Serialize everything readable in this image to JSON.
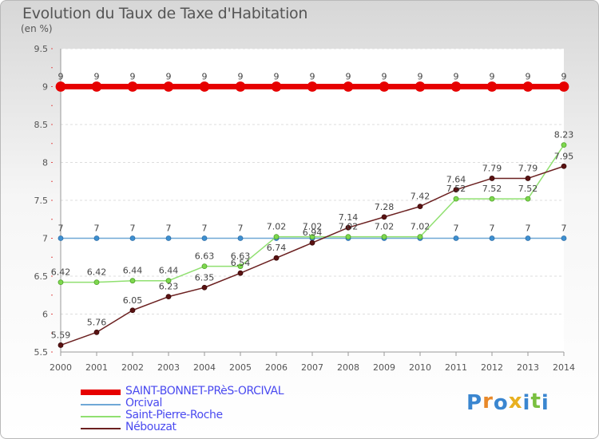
{
  "title": "Evolution du Taux de Taxe d'Habitation",
  "subtitle": "(en %)",
  "logo_text": "Proxiti",
  "chart_data": {
    "type": "line",
    "title": "Evolution du Taux de Taxe d'Habitation",
    "ylabel": "(en %)",
    "xlabel": "",
    "x": [
      "2000",
      "2001",
      "2002",
      "2003",
      "2004",
      "2005",
      "2006",
      "2007",
      "2008",
      "2009",
      "2010",
      "2011",
      "2012",
      "2013",
      "2014"
    ],
    "ylim": [
      5.5,
      9.5
    ],
    "yticks": [
      "5.5",
      "6",
      "6.5",
      "7",
      "7.5",
      "8",
      "8.5",
      "9",
      "9.5"
    ],
    "grid": "horizontal",
    "legend_position": "bottom",
    "series": [
      {
        "name": "SAINT-BONNET-PRèS-ORCIVAL",
        "color": "#e60000",
        "values": [
          9,
          9,
          9,
          9,
          9,
          9,
          9,
          9,
          9,
          9,
          9,
          9,
          9,
          9,
          9
        ],
        "labels": [
          "9",
          "9",
          "9",
          "9",
          "9",
          "9",
          "9",
          "9",
          "9",
          "9",
          "9",
          "9",
          "9",
          "9",
          "9"
        ]
      },
      {
        "name": "Orcival",
        "color": "#6fa8d6",
        "values": [
          7,
          7,
          7,
          7,
          7,
          7,
          7,
          7,
          7,
          7,
          7,
          7,
          7,
          7,
          7
        ],
        "labels": [
          "7",
          "7",
          "7",
          "7",
          "7",
          "7",
          "",
          "",
          "",
          "",
          "",
          "7",
          "7",
          "7",
          "7"
        ]
      },
      {
        "name": "Saint-Pierre-Roche",
        "color": "#90e070",
        "values": [
          6.42,
          6.42,
          6.44,
          6.44,
          6.63,
          6.63,
          7.02,
          7.02,
          7.02,
          7.02,
          7.02,
          7.52,
          7.52,
          7.52,
          8.23
        ],
        "labels": [
          "6.42",
          "6.42",
          "6.44",
          "6.44",
          "6.63",
          "6.63",
          "7.02",
          "7.02",
          "7.02",
          "7.02",
          "7.02",
          "7.52",
          "7.52",
          "7.52",
          "8.23"
        ]
      },
      {
        "name": "Nébouzat",
        "color": "#6b2020",
        "values": [
          5.59,
          5.76,
          6.05,
          6.23,
          6.35,
          6.54,
          6.74,
          6.94,
          7.14,
          7.28,
          7.42,
          7.64,
          7.79,
          7.79,
          7.95
        ],
        "labels": [
          "5.59",
          "5.76",
          "6.05",
          "6.23",
          "6.35",
          "6.54",
          "6.74",
          "6.94",
          "7.14",
          "7.28",
          "7.42",
          "7.64",
          "7.79",
          "7.79",
          "7.95"
        ]
      }
    ]
  }
}
